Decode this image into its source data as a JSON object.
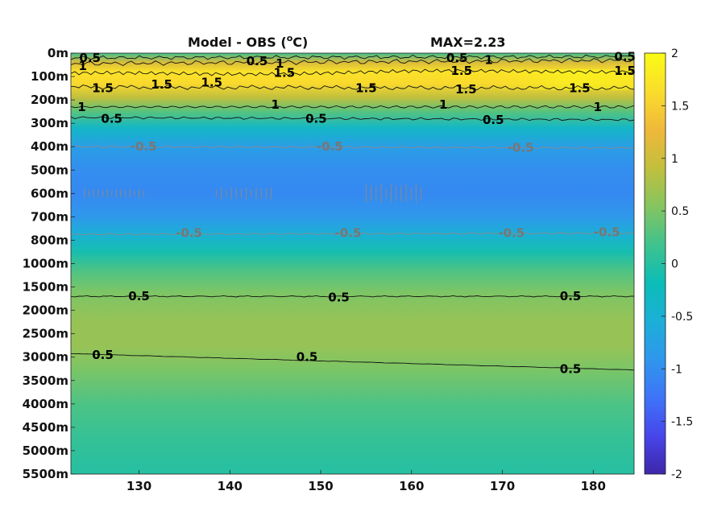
{
  "chart_data": {
    "type": "heatmap",
    "title": "Model - OBS (",
    "title_unit_super": "o",
    "title_unit": "C)",
    "max_label": "MAX=2.23",
    "x_ticks": [
      130,
      140,
      150,
      160,
      170,
      180
    ],
    "xlim": [
      122.5,
      184.5
    ],
    "y_labels": [
      "0m",
      "100m",
      "200m",
      "300m",
      "400m",
      "500m",
      "600m",
      "700m",
      "800m",
      "1000m",
      "1500m",
      "2000m",
      "2500m",
      "3000m",
      "3500m",
      "4000m",
      "4500m",
      "5000m",
      "5500m"
    ],
    "colorbar": {
      "min": -2,
      "max": 2,
      "ticks": [
        "2",
        "1.5",
        "1",
        "0.5",
        "0",
        "-0.5",
        "-1",
        "-1.5",
        "-2"
      ],
      "colormap": [
        "#3e26a8",
        "#4746eb",
        "#3e74f8",
        "#2f97ec",
        "#1cafd7",
        "#0bbdb7",
        "#40c28d",
        "#85c560",
        "#c2bf3d",
        "#f0b83a",
        "#fadd2c",
        "#f9fb15"
      ]
    },
    "depth_profile": [
      {
        "level": 0.0,
        "value": 0.2
      },
      {
        "level": 0.4,
        "value": 1.1
      },
      {
        "level": 0.8,
        "value": 1.7
      },
      {
        "level": 1.3,
        "value": 1.6
      },
      {
        "level": 1.9,
        "value": 0.9
      },
      {
        "level": 2.5,
        "value": 0.3
      },
      {
        "level": 3.2,
        "value": -0.35
      },
      {
        "level": 4.0,
        "value": -0.8
      },
      {
        "level": 5.0,
        "value": -1.0
      },
      {
        "level": 6.0,
        "value": -1.05
      },
      {
        "level": 7.0,
        "value": -0.9
      },
      {
        "level": 7.8,
        "value": -0.5
      },
      {
        "level": 8.5,
        "value": -0.1
      },
      {
        "level": 9.3,
        "value": 0.25
      },
      {
        "level": 10.2,
        "value": 0.5
      },
      {
        "level": 11.5,
        "value": 0.65
      },
      {
        "level": 12.5,
        "value": 0.65
      },
      {
        "level": 13.5,
        "value": 0.5
      },
      {
        "level": 15.0,
        "value": 0.25
      },
      {
        "level": 16.5,
        "value": 0.1
      },
      {
        "level": 18.0,
        "value": 0.0
      }
    ],
    "contour_labels": [
      {
        "text": "0.5",
        "x": 124.6,
        "level": 0.2
      },
      {
        "text": "1",
        "x": 123.8,
        "level": 0.55
      },
      {
        "text": "1.5",
        "x": 126.0,
        "level": 1.5
      },
      {
        "text": "1.5",
        "x": 132.5,
        "level": 1.35
      },
      {
        "text": "1.5",
        "x": 138.0,
        "level": 1.25
      },
      {
        "text": "0.5",
        "x": 143.0,
        "level": 0.35
      },
      {
        "text": "1",
        "x": 145.5,
        "level": 0.45
      },
      {
        "text": "1.5",
        "x": 146.0,
        "level": 0.85
      },
      {
        "text": "1.5",
        "x": 155.0,
        "level": 1.5
      },
      {
        "text": "0.5",
        "x": 165.0,
        "level": 0.2
      },
      {
        "text": "1",
        "x": 168.5,
        "level": 0.3
      },
      {
        "text": "1.5",
        "x": 165.5,
        "level": 0.75
      },
      {
        "text": "1.5",
        "x": 166.0,
        "level": 1.55
      },
      {
        "text": "0.5",
        "x": 183.5,
        "level": 0.15
      },
      {
        "text": "1",
        "x": 186.0,
        "level": 0.3
      },
      {
        "text": "1.5",
        "x": 183.5,
        "level": 0.75
      },
      {
        "text": "1.5",
        "x": 178.5,
        "level": 1.5
      },
      {
        "text": "1",
        "x": 123.7,
        "level": 2.3
      },
      {
        "text": "1",
        "x": 145.0,
        "level": 2.2
      },
      {
        "text": "1",
        "x": 163.5,
        "level": 2.2
      },
      {
        "text": "1",
        "x": 180.5,
        "level": 2.3
      },
      {
        "text": "0.5",
        "x": 127.0,
        "level": 2.8
      },
      {
        "text": "0.5",
        "x": 149.5,
        "level": 2.8
      },
      {
        "text": "0.5",
        "x": 169.0,
        "level": 2.85
      },
      {
        "text": "0.5",
        "x": 130.0,
        "level": 10.4
      },
      {
        "text": "0.5",
        "x": 152.0,
        "level": 10.45
      },
      {
        "text": "0.5",
        "x": 177.5,
        "level": 10.4
      },
      {
        "text": "0.5",
        "x": 126.0,
        "level": 12.9
      },
      {
        "text": "0.5",
        "x": 148.5,
        "level": 13.0
      },
      {
        "text": "0.5",
        "x": 177.5,
        "level": 13.5
      }
    ],
    "negative_contour_labels": [
      {
        "text": "-0.5",
        "x": 130.5,
        "level": 4.0
      },
      {
        "text": "-0.5",
        "x": 151.0,
        "level": 4.0
      },
      {
        "text": "-0.5",
        "x": 172.0,
        "level": 4.05
      },
      {
        "text": "-0.5",
        "x": 135.5,
        "level": 7.7
      },
      {
        "text": "-0.5",
        "x": 153.0,
        "level": 7.7
      },
      {
        "text": "-0.5",
        "x": 171.0,
        "level": 7.7
      },
      {
        "text": "-0.5",
        "x": 181.5,
        "level": 7.65
      }
    ]
  }
}
